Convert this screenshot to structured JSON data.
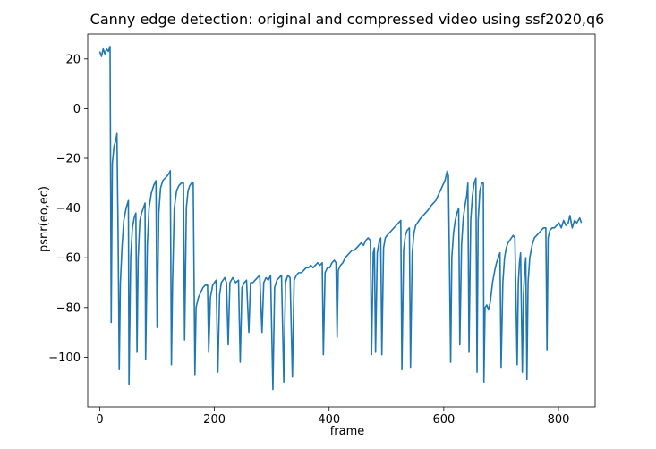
{
  "chart_data": {
    "type": "line",
    "title": "Canny edge detection: original and compressed video using ssf2020,q6",
    "xlabel": "frame",
    "ylabel": "psnr(eo,ec)",
    "xlim": [
      -21,
      864
    ],
    "ylim": [
      -120,
      30
    ],
    "xticks": [
      0,
      200,
      400,
      600,
      800
    ],
    "yticks": [
      20,
      0,
      -20,
      -40,
      -60,
      -80,
      -100
    ],
    "grid": false,
    "legend": "none",
    "series": [
      {
        "color": "#1f77b4",
        "points": [
          [
            0,
            23
          ],
          [
            3,
            21
          ],
          [
            6,
            24
          ],
          [
            9,
            22
          ],
          [
            12,
            24
          ],
          [
            15,
            23
          ],
          [
            18,
            25
          ],
          [
            20,
            -86
          ],
          [
            22,
            -22
          ],
          [
            25,
            -15
          ],
          [
            28,
            -13
          ],
          [
            30,
            -10
          ],
          [
            32,
            -50
          ],
          [
            34,
            -105
          ],
          [
            36,
            -70
          ],
          [
            39,
            -55
          ],
          [
            42,
            -45
          ],
          [
            46,
            -40
          ],
          [
            50,
            -37
          ],
          [
            51,
            -111
          ],
          [
            54,
            -60
          ],
          [
            57,
            -48
          ],
          [
            60,
            -44
          ],
          [
            63,
            -42
          ],
          [
            65,
            -98
          ],
          [
            67,
            -60
          ],
          [
            70,
            -45
          ],
          [
            73,
            -42
          ],
          [
            76,
            -40
          ],
          [
            79,
            -38
          ],
          [
            80,
            -101
          ],
          [
            83,
            -55
          ],
          [
            86,
            -40
          ],
          [
            90,
            -34
          ],
          [
            94,
            -31
          ],
          [
            98,
            -29
          ],
          [
            100,
            -88
          ],
          [
            103,
            -42
          ],
          [
            106,
            -32
          ],
          [
            110,
            -29
          ],
          [
            114,
            -28
          ],
          [
            118,
            -27
          ],
          [
            121,
            -26
          ],
          [
            123,
            -25
          ],
          [
            125,
            -103
          ],
          [
            127,
            -70
          ],
          [
            130,
            -40
          ],
          [
            134,
            -33
          ],
          [
            138,
            -31
          ],
          [
            142,
            -30
          ],
          [
            146,
            -30
          ],
          [
            148,
            -93
          ],
          [
            151,
            -40
          ],
          [
            154,
            -33
          ],
          [
            157,
            -31
          ],
          [
            160,
            -30
          ],
          [
            163,
            -30
          ],
          [
            166,
            -107
          ],
          [
            168,
            -80
          ],
          [
            172,
            -76
          ],
          [
            176,
            -74
          ],
          [
            180,
            -72
          ],
          [
            184,
            -71
          ],
          [
            188,
            -71
          ],
          [
            190,
            -98
          ],
          [
            193,
            -76
          ],
          [
            197,
            -71
          ],
          [
            200,
            -70
          ],
          [
            203,
            -69
          ],
          [
            206,
            -106
          ],
          [
            209,
            -75
          ],
          [
            212,
            -70
          ],
          [
            215,
            -69
          ],
          [
            218,
            -68
          ],
          [
            221,
            -70
          ],
          [
            224,
            -95
          ],
          [
            227,
            -70
          ],
          [
            232,
            -68
          ],
          [
            237,
            -70
          ],
          [
            242,
            -69
          ],
          [
            245,
            -102
          ],
          [
            248,
            -72
          ],
          [
            252,
            -70
          ],
          [
            256,
            -69
          ],
          [
            260,
            -90
          ],
          [
            263,
            -70
          ],
          [
            267,
            -70
          ],
          [
            271,
            -69
          ],
          [
            275,
            -68
          ],
          [
            279,
            -67
          ],
          [
            283,
            -90
          ],
          [
            286,
            -70
          ],
          [
            290,
            -68
          ],
          [
            294,
            -69
          ],
          [
            298,
            -67
          ],
          [
            302,
            -113
          ],
          [
            305,
            -72
          ],
          [
            309,
            -69
          ],
          [
            313,
            -68
          ],
          [
            317,
            -67
          ],
          [
            321,
            -110
          ],
          [
            324,
            -70
          ],
          [
            328,
            -67
          ],
          [
            332,
            -68
          ],
          [
            336,
            -108
          ],
          [
            339,
            -69
          ],
          [
            343,
            -67
          ],
          [
            347,
            -66
          ],
          [
            352,
            -66
          ],
          [
            356,
            -65
          ],
          [
            360,
            -64
          ],
          [
            364,
            -64
          ],
          [
            368,
            -63
          ],
          [
            372,
            -64
          ],
          [
            376,
            -63
          ],
          [
            380,
            -62
          ],
          [
            384,
            -63
          ],
          [
            388,
            -62
          ],
          [
            390,
            -99
          ],
          [
            393,
            -66
          ],
          [
            397,
            -64
          ],
          [
            401,
            -64
          ],
          [
            405,
            -62
          ],
          [
            409,
            -61
          ],
          [
            412,
            -62
          ],
          [
            414,
            -92
          ],
          [
            416,
            -65
          ],
          [
            420,
            -63
          ],
          [
            424,
            -62
          ],
          [
            428,
            -60
          ],
          [
            432,
            -59
          ],
          [
            436,
            -58
          ],
          [
            440,
            -57
          ],
          [
            444,
            -57
          ],
          [
            448,
            -56
          ],
          [
            452,
            -55
          ],
          [
            456,
            -54
          ],
          [
            460,
            -55
          ],
          [
            464,
            -53
          ],
          [
            468,
            -52
          ],
          [
            472,
            -53
          ],
          [
            474,
            -99
          ],
          [
            477,
            -58
          ],
          [
            479,
            -56
          ],
          [
            481,
            -98
          ],
          [
            484,
            -58
          ],
          [
            487,
            -54
          ],
          [
            490,
            -52
          ],
          [
            492,
            -99
          ],
          [
            495,
            -56
          ],
          [
            498,
            -52
          ],
          [
            501,
            -51
          ],
          [
            505,
            -50
          ],
          [
            509,
            -49
          ],
          [
            513,
            -48
          ],
          [
            517,
            -47
          ],
          [
            521,
            -46
          ],
          [
            525,
            -45
          ],
          [
            527,
            -105
          ],
          [
            530,
            -57
          ],
          [
            533,
            -51
          ],
          [
            536,
            -49
          ],
          [
            540,
            -48
          ],
          [
            542,
            -104
          ],
          [
            545,
            -58
          ],
          [
            548,
            -50
          ],
          [
            551,
            -47
          ],
          [
            554,
            -46
          ],
          [
            557,
            -45
          ],
          [
            560,
            -44
          ],
          [
            564,
            -43
          ],
          [
            568,
            -42
          ],
          [
            572,
            -41
          ],
          [
            575,
            -40
          ],
          [
            578,
            -39
          ],
          [
            582,
            -38
          ],
          [
            586,
            -37
          ],
          [
            590,
            -35
          ],
          [
            594,
            -33
          ],
          [
            598,
            -31
          ],
          [
            602,
            -29
          ],
          [
            606,
            -25
          ],
          [
            608,
            -27
          ],
          [
            612,
            -102
          ],
          [
            614,
            -60
          ],
          [
            617,
            -50
          ],
          [
            620,
            -45
          ],
          [
            623,
            -42
          ],
          [
            626,
            -40
          ],
          [
            628,
            -95
          ],
          [
            631,
            -55
          ],
          [
            634,
            -44
          ],
          [
            637,
            -39
          ],
          [
            640,
            -35
          ],
          [
            642,
            -30
          ],
          [
            644,
            -98
          ],
          [
            647,
            -45
          ],
          [
            650,
            -35
          ],
          [
            653,
            -30
          ],
          [
            656,
            -28
          ],
          [
            658,
            -106
          ],
          [
            660,
            -45
          ],
          [
            663,
            -33
          ],
          [
            666,
            -30
          ],
          [
            669,
            -30
          ],
          [
            670,
            -110
          ],
          [
            672,
            -80
          ],
          [
            675,
            -79
          ],
          [
            678,
            -81
          ],
          [
            681,
            -78
          ],
          [
            685,
            -70
          ],
          [
            689,
            -65
          ],
          [
            692,
            -62
          ],
          [
            695,
            -60
          ],
          [
            698,
            -58
          ],
          [
            700,
            -104
          ],
          [
            703,
            -70
          ],
          [
            706,
            -60
          ],
          [
            709,
            -56
          ],
          [
            712,
            -54
          ],
          [
            715,
            -53
          ],
          [
            718,
            -52
          ],
          [
            721,
            -51
          ],
          [
            724,
            -52
          ],
          [
            728,
            -103
          ],
          [
            730,
            -70
          ],
          [
            732,
            -62
          ],
          [
            734,
            -58
          ],
          [
            737,
            -106
          ],
          [
            739,
            -75
          ],
          [
            741,
            -65
          ],
          [
            743,
            -60
          ],
          [
            745,
            -109
          ],
          [
            747,
            -70
          ],
          [
            750,
            -60
          ],
          [
            754,
            -55
          ],
          [
            758,
            -52
          ],
          [
            762,
            -51
          ],
          [
            766,
            -50
          ],
          [
            770,
            -49
          ],
          [
            774,
            -48
          ],
          [
            778,
            -48
          ],
          [
            780,
            -97
          ],
          [
            782,
            -52
          ],
          [
            785,
            -49
          ],
          [
            789,
            -48
          ],
          [
            793,
            -48
          ],
          [
            797,
            -47
          ],
          [
            801,
            -46
          ],
          [
            805,
            -48
          ],
          [
            809,
            -45
          ],
          [
            813,
            -47
          ],
          [
            817,
            -46
          ],
          [
            820,
            -43
          ],
          [
            824,
            -48
          ],
          [
            828,
            -45
          ],
          [
            832,
            -46
          ],
          [
            837,
            -44
          ],
          [
            840,
            -46
          ]
        ]
      }
    ]
  }
}
